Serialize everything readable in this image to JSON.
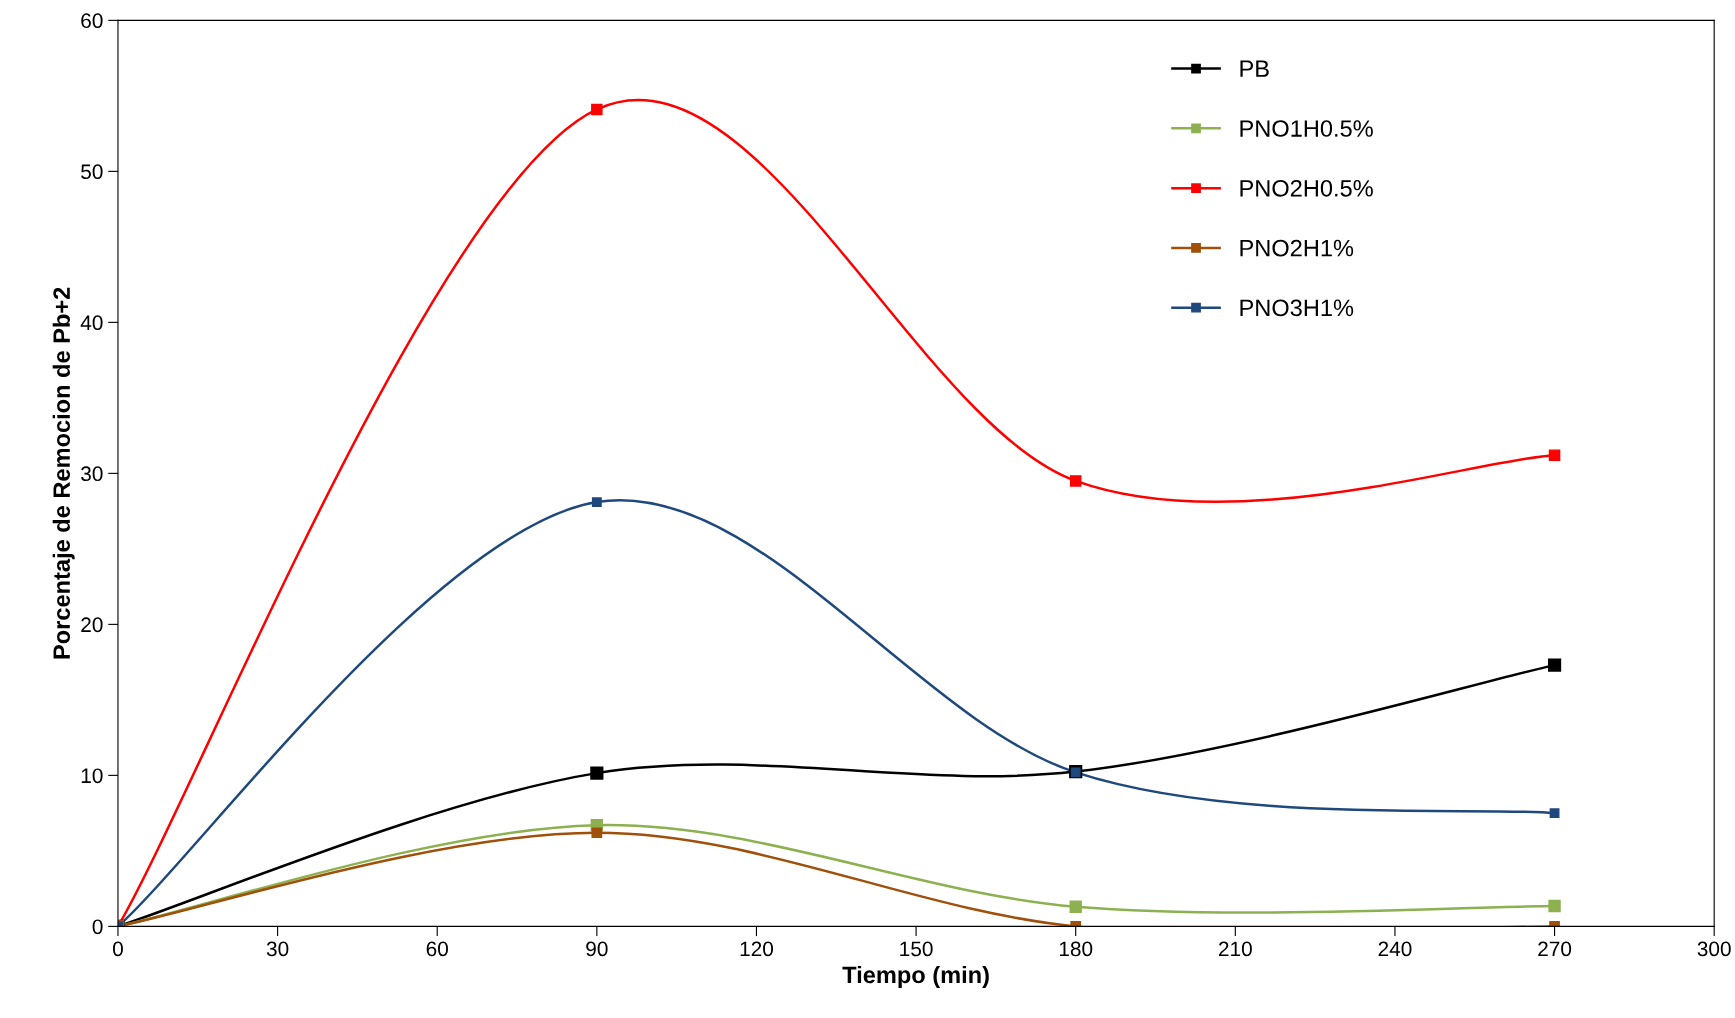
{
  "chart_data": {
    "type": "line",
    "xlabel": "Tiempo (min)",
    "ylabel": "Porcentaje de Remocion de Pb+2",
    "x": [
      0,
      90,
      180,
      270
    ],
    "series": [
      {
        "name": "PB",
        "color": "#000000",
        "values": [
          0,
          10.15,
          10.25,
          17.3
        ]
      },
      {
        "name": "PNO1H0.5%",
        "color": "#8db150",
        "values": [
          0,
          6.7,
          1.3,
          1.35
        ]
      },
      {
        "name": "PNO2H0.5%",
        "color": "#ff0000",
        "values": [
          0,
          54.1,
          29.5,
          31.2
        ]
      },
      {
        "name": "PNO2H1%",
        "color": "#a0500a",
        "values": [
          0,
          6.2,
          0,
          0
        ]
      },
      {
        "name": "PNO3H1%",
        "color": "#1f497d",
        "values": [
          0,
          28.1,
          10.2,
          7.5
        ]
      }
    ],
    "xlim": [
      0,
      300
    ],
    "xticks": [
      0,
      30,
      60,
      90,
      120,
      150,
      180,
      210,
      240,
      270,
      300
    ],
    "ylim": [
      0,
      60
    ],
    "yticks": [
      0,
      10,
      20,
      30,
      40,
      50,
      60
    ],
    "marker": "square",
    "line_style": "solid",
    "grid": false,
    "legend": "top right"
  }
}
